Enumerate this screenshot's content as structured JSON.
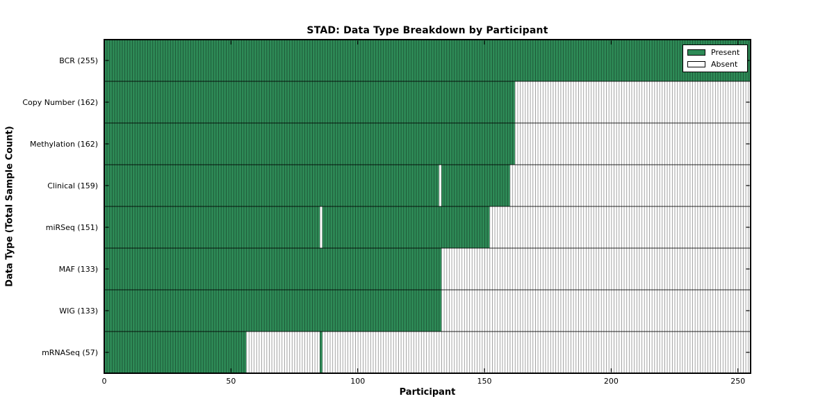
{
  "figure": {
    "background": "#ffffff"
  },
  "chart_data": {
    "type": "heatmap",
    "title": "STAD: Data Type Breakdown by Participant",
    "xlabel": "Participant",
    "ylabel": "Data Type (Total Sample Count)",
    "xlim": [
      0,
      255
    ],
    "x_ticks": [
      0,
      50,
      100,
      150,
      200,
      250
    ],
    "n_participants": 255,
    "grid": false,
    "colors": {
      "present": "#2e8b57",
      "absent": "#ffffff",
      "edge": "#000000"
    },
    "legend": {
      "position": "upper-right",
      "entries": [
        {
          "label": "Present",
          "color": "#2e8b57"
        },
        {
          "label": "Absent",
          "color": "#ffffff"
        }
      ]
    },
    "rows": [
      {
        "label": "BCR (255)",
        "data_type": "BCR",
        "total": 255,
        "present_ranges": [
          [
            0,
            255
          ]
        ]
      },
      {
        "label": "Copy Number (162)",
        "data_type": "Copy Number",
        "total": 162,
        "present_ranges": [
          [
            0,
            162
          ]
        ]
      },
      {
        "label": "Methylation (162)",
        "data_type": "Methylation",
        "total": 162,
        "present_ranges": [
          [
            0,
            162
          ]
        ]
      },
      {
        "label": "Clinical (159)",
        "data_type": "Clinical",
        "total": 159,
        "present_ranges": [
          [
            0,
            132
          ],
          [
            133,
            160
          ]
        ]
      },
      {
        "label": "miRSeq (151)",
        "data_type": "miRSeq",
        "total": 151,
        "present_ranges": [
          [
            0,
            85
          ],
          [
            86,
            152
          ]
        ]
      },
      {
        "label": "MAF (133)",
        "data_type": "MAF",
        "total": 133,
        "present_ranges": [
          [
            0,
            133
          ]
        ]
      },
      {
        "label": "WIG (133)",
        "data_type": "WIG",
        "total": 133,
        "present_ranges": [
          [
            0,
            133
          ]
        ]
      },
      {
        "label": "mRNASeq (57)",
        "data_type": "mRNASeq",
        "total": 57,
        "present_ranges": [
          [
            0,
            56
          ],
          [
            85,
            86
          ]
        ]
      }
    ]
  }
}
